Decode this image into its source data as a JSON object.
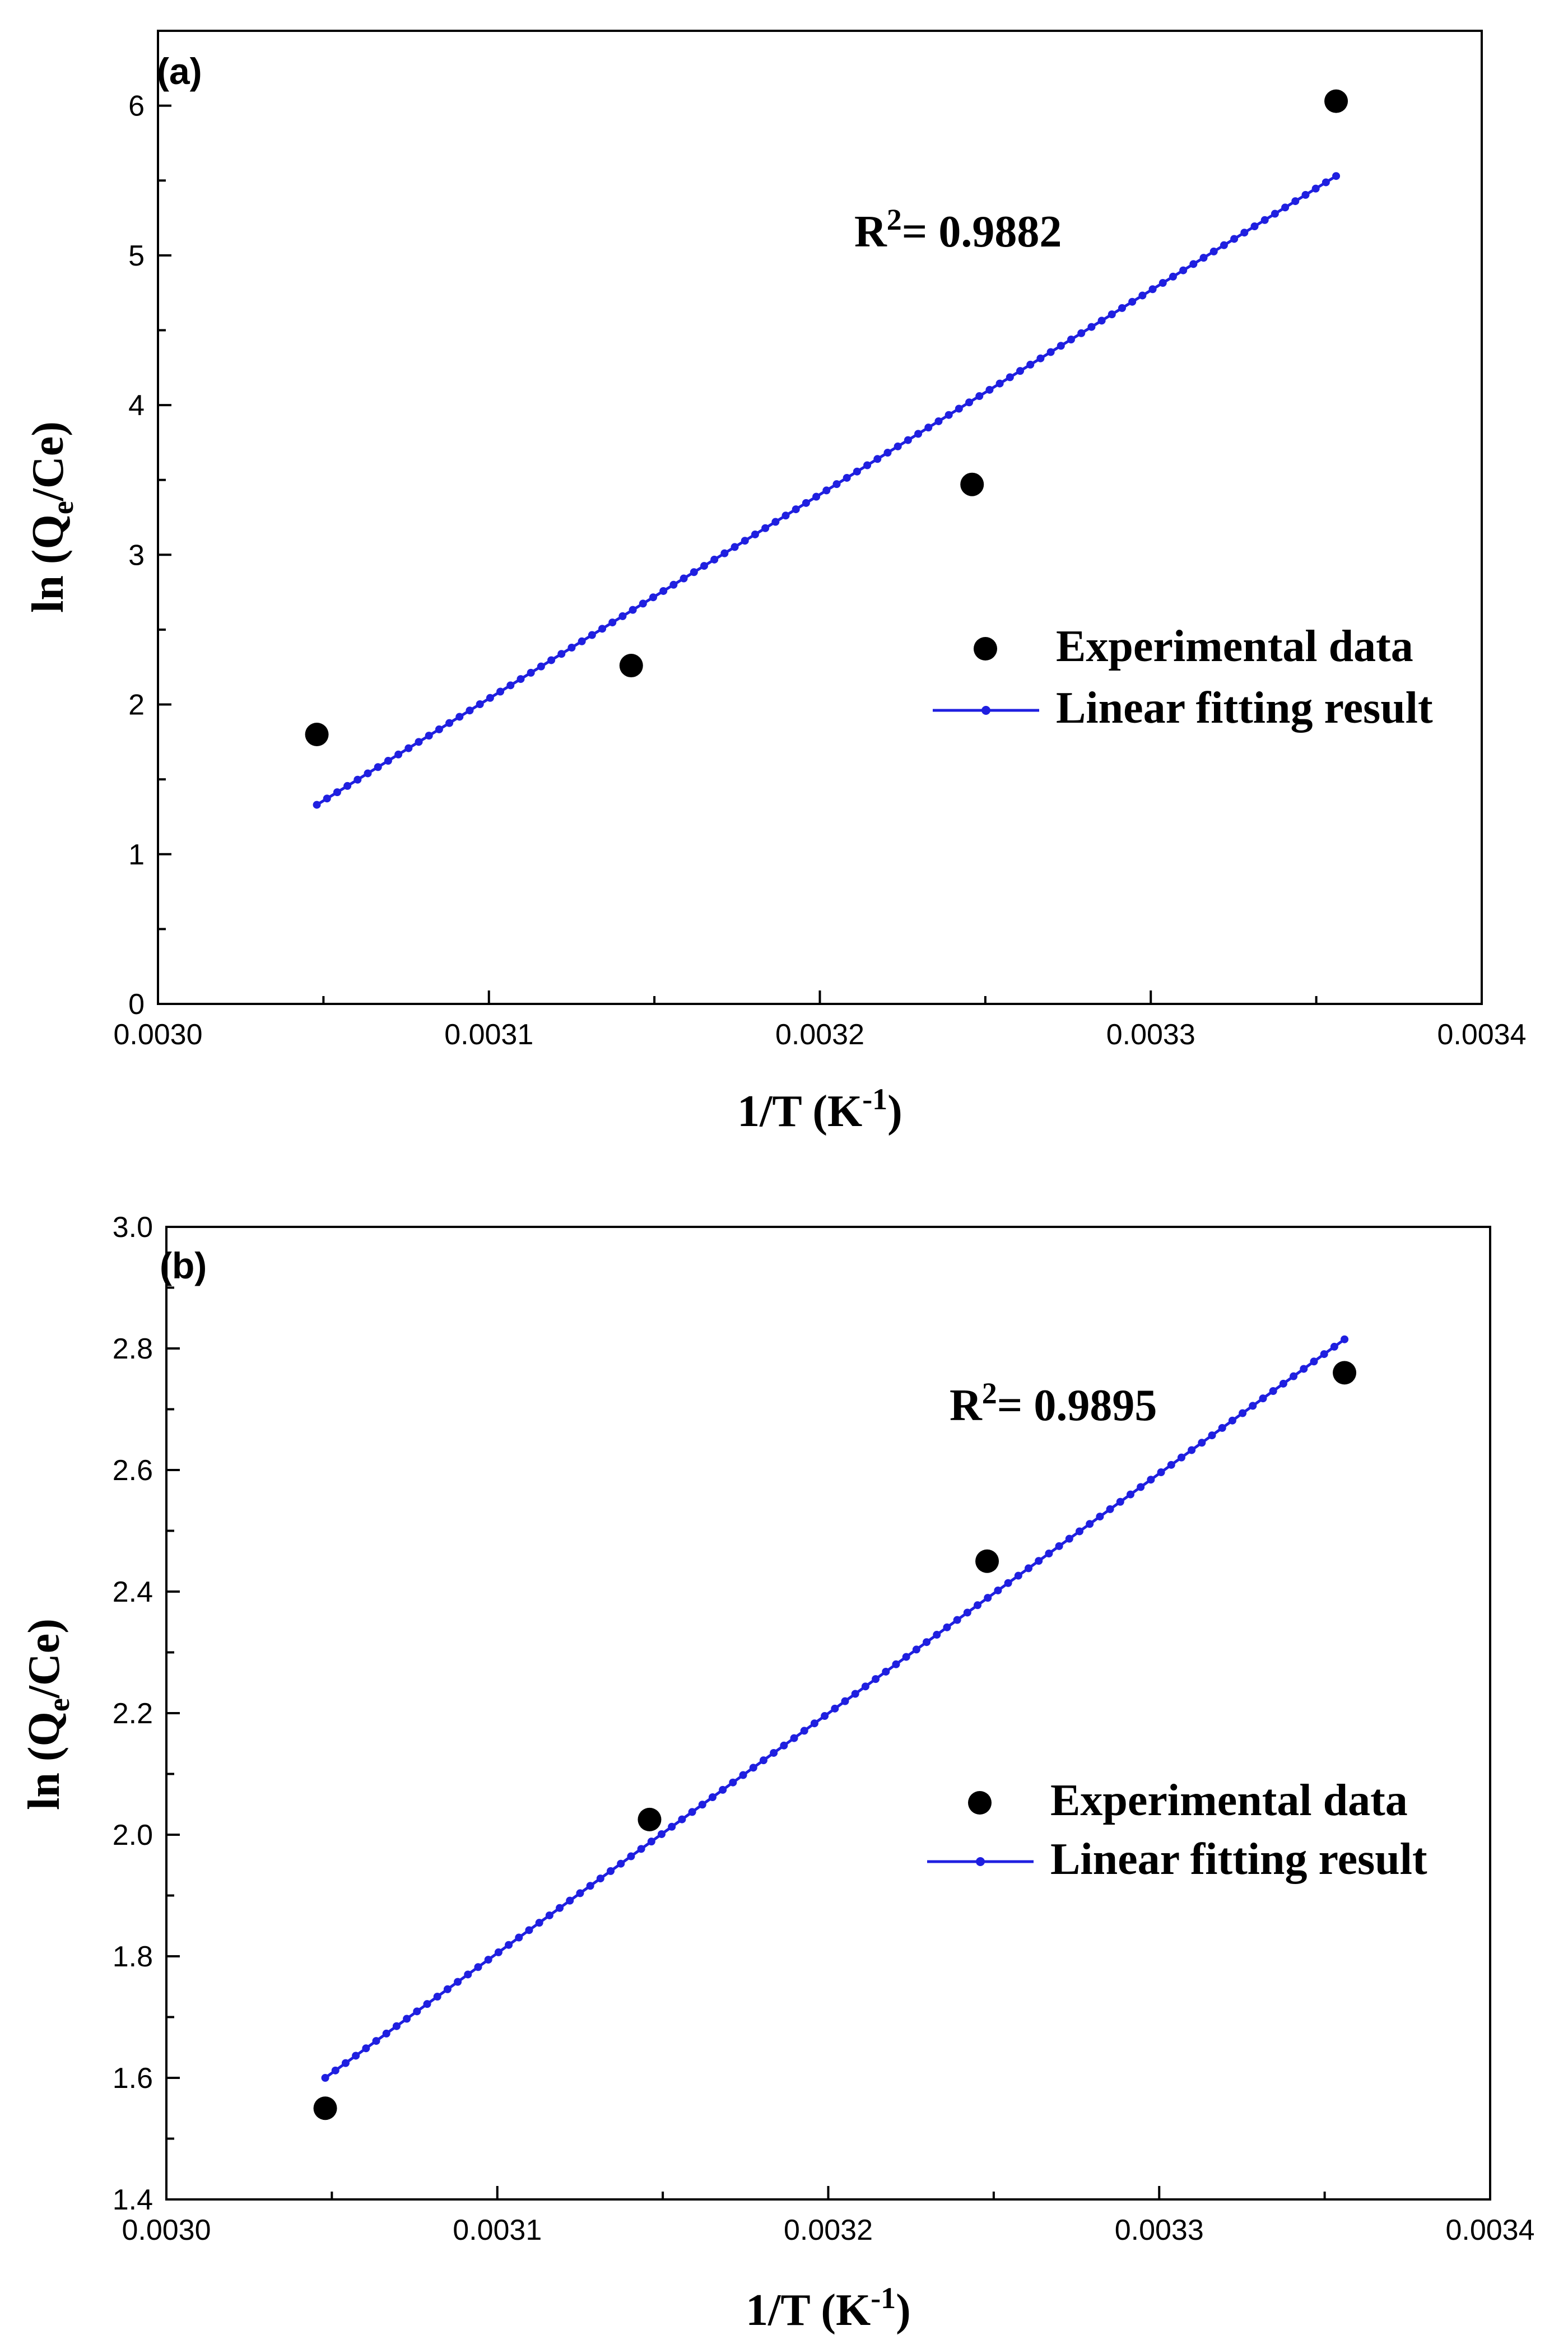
{
  "chart_data": [
    {
      "type": "scatter",
      "panel_label": "(a)",
      "xlabel": {
        "main": "1/T (K",
        "sup": "-1",
        "close": ")"
      },
      "ylabel": {
        "main": "ln (Q",
        "sub": "e",
        "rest": "/Ce)"
      },
      "xlim": [
        0.003,
        0.0034
      ],
      "ylim": [
        0,
        6.5
      ],
      "xticks": [
        0.003,
        0.0031,
        0.0032,
        0.0033,
        0.0034
      ],
      "xtick_labels": [
        "0.0030",
        "0.0031",
        "0.0032",
        "0.0033",
        "0.0034"
      ],
      "yticks": [
        0,
        1,
        2,
        3,
        4,
        5,
        6
      ],
      "ytick_labels": [
        "0",
        "1",
        "2",
        "3",
        "4",
        "5",
        "6"
      ],
      "yminor_step": 0.5,
      "series": [
        {
          "name": "Experimental data",
          "kind": "scatter",
          "color": "#000000",
          "x": [
            0.003048,
            0.003143,
            0.003246,
            0.003356
          ],
          "y": [
            1.8,
            2.26,
            3.47,
            6.03
          ]
        },
        {
          "name": "Linear fitting result",
          "kind": "line",
          "color": "#1f1fe0",
          "x": [
            0.003048,
            0.003356
          ],
          "y": [
            1.33,
            5.53
          ]
        }
      ],
      "annotation": {
        "base": "R",
        "sup": "2",
        "rest": "= 0.9882"
      },
      "legend": [
        "Experimental data",
        "Linear fitting result"
      ]
    },
    {
      "type": "scatter",
      "panel_label": "(b)",
      "xlabel": {
        "main": "1/T (K",
        "sup": "-1",
        "close": ")"
      },
      "ylabel": {
        "main": "ln (Q",
        "sub": "e",
        "rest": "/Ce)"
      },
      "xlim": [
        0.003,
        0.0034
      ],
      "ylim": [
        1.4,
        3.0
      ],
      "xticks": [
        0.003,
        0.0031,
        0.0032,
        0.0033,
        0.0034
      ],
      "xtick_labels": [
        "0.0030",
        "0.0031",
        "0.0032",
        "0.0033",
        "0.0034"
      ],
      "yticks": [
        1.4,
        1.6,
        1.8,
        2.0,
        2.2,
        2.4,
        2.6,
        2.8,
        3.0
      ],
      "ytick_labels": [
        "1.4",
        "1.6",
        "1.8",
        "2.0",
        "2.2",
        "2.4",
        "2.6",
        "2.8",
        "3.0"
      ],
      "yminor_step": 0.1,
      "series": [
        {
          "name": "Experimental data",
          "kind": "scatter",
          "color": "#000000",
          "x": [
            0.003048,
            0.003146,
            0.003248,
            0.003356
          ],
          "y": [
            1.55,
            2.025,
            2.45,
            2.76
          ]
        },
        {
          "name": "Linear fitting result",
          "kind": "line",
          "color": "#1f1fe0",
          "x": [
            0.003048,
            0.003356
          ],
          "y": [
            1.6,
            2.815
          ]
        }
      ],
      "annotation": {
        "base": "R",
        "sup": "2",
        "rest": "= 0.9895"
      },
      "legend": [
        "Experimental data",
        "Linear fitting result"
      ]
    }
  ]
}
